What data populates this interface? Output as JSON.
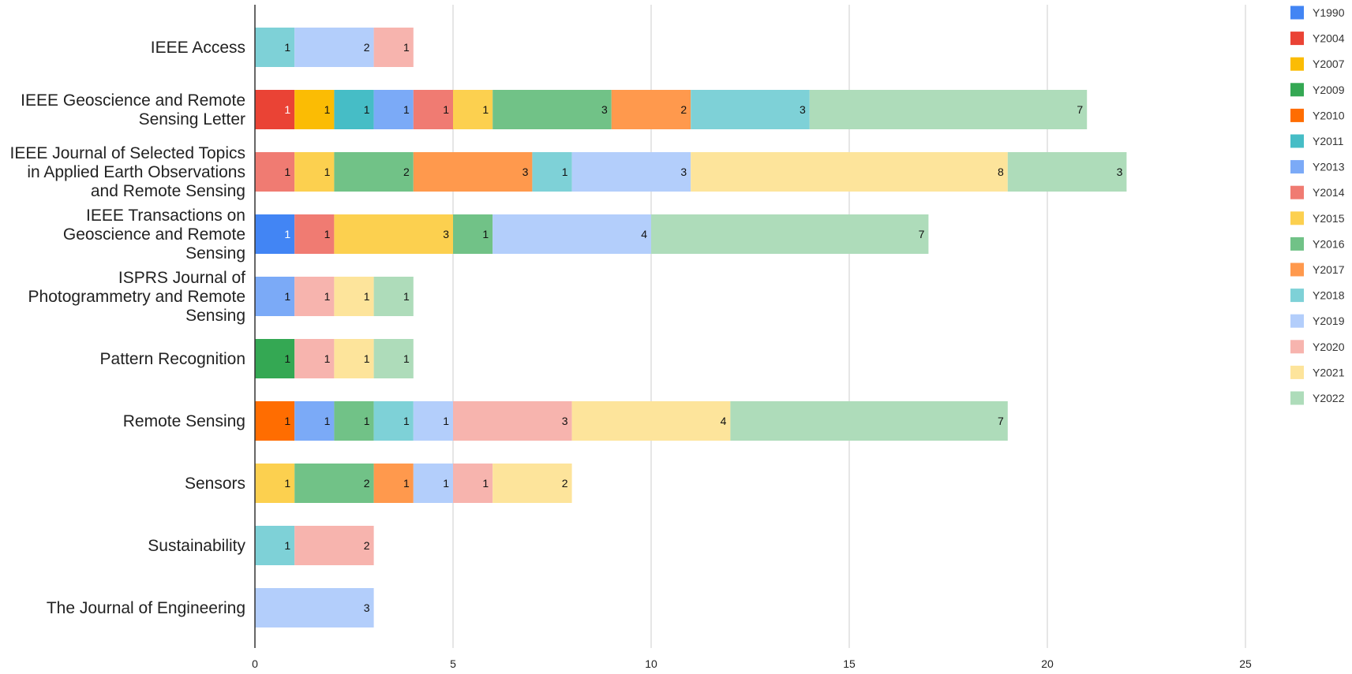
{
  "chart_data": {
    "type": "bar",
    "orientation": "horizontal",
    "stacked": true,
    "title": "",
    "xlabel": "",
    "ylabel": "",
    "xlim": [
      0,
      25
    ],
    "xticks": [
      0,
      5,
      10,
      15,
      20,
      25
    ],
    "grid": true,
    "legend_position": "right",
    "categories": [
      [
        "IEEE Access"
      ],
      [
        "IEEE Geoscience and Remote",
        "Sensing Letter"
      ],
      [
        "IEEE Journal of Selected Topics",
        "in Applied Earth Observations",
        "and Remote Sensing"
      ],
      [
        "IEEE Transactions on",
        "Geoscience and Remote",
        "Sensing"
      ],
      [
        "ISPRS Journal of",
        "Photogrammetry and Remote",
        "Sensing"
      ],
      [
        "Pattern Recognition"
      ],
      [
        "Remote Sensing"
      ],
      [
        "Sensors"
      ],
      [
        "Sustainability"
      ],
      [
        "The Journal of Engineering"
      ]
    ],
    "series": [
      {
        "name": "Y1990",
        "color": "#4285f4",
        "values": [
          0,
          0,
          0,
          1,
          0,
          0,
          0,
          0,
          0,
          0
        ]
      },
      {
        "name": "Y2004",
        "color": "#ea4335",
        "values": [
          0,
          1,
          0,
          0,
          0,
          0,
          0,
          0,
          0,
          0
        ]
      },
      {
        "name": "Y2007",
        "color": "#fbbc04",
        "values": [
          0,
          1,
          0,
          0,
          0,
          0,
          0,
          0,
          0,
          0
        ]
      },
      {
        "name": "Y2009",
        "color": "#34a853",
        "values": [
          0,
          0,
          0,
          0,
          0,
          1,
          0,
          0,
          0,
          0
        ]
      },
      {
        "name": "Y2010",
        "color": "#ff6d01",
        "values": [
          0,
          0,
          0,
          0,
          0,
          0,
          1,
          0,
          0,
          0
        ]
      },
      {
        "name": "Y2011",
        "color": "#46bdc6",
        "values": [
          0,
          1,
          0,
          0,
          0,
          0,
          0,
          0,
          0,
          0
        ]
      },
      {
        "name": "Y2013",
        "color": "#7baaf7",
        "values": [
          0,
          1,
          0,
          0,
          1,
          0,
          1,
          0,
          0,
          0
        ]
      },
      {
        "name": "Y2014",
        "color": "#f07b72",
        "values": [
          0,
          1,
          1,
          1,
          0,
          0,
          0,
          0,
          0,
          0
        ]
      },
      {
        "name": "Y2015",
        "color": "#fcd04f",
        "values": [
          0,
          1,
          1,
          3,
          0,
          0,
          0,
          1,
          0,
          0
        ]
      },
      {
        "name": "Y2016",
        "color": "#71c287",
        "values": [
          0,
          3,
          2,
          1,
          0,
          0,
          1,
          2,
          0,
          0
        ]
      },
      {
        "name": "Y2017",
        "color": "#ff994d",
        "values": [
          0,
          2,
          3,
          0,
          0,
          0,
          0,
          1,
          0,
          0
        ]
      },
      {
        "name": "Y2018",
        "color": "#7ed1d7",
        "values": [
          1,
          3,
          1,
          0,
          0,
          0,
          1,
          0,
          1,
          0
        ]
      },
      {
        "name": "Y2019",
        "color": "#b3cefb",
        "values": [
          2,
          0,
          3,
          4,
          0,
          0,
          1,
          1,
          0,
          3
        ]
      },
      {
        "name": "Y2020",
        "color": "#f7b4ae",
        "values": [
          1,
          0,
          0,
          0,
          1,
          1,
          3,
          1,
          2,
          0
        ]
      },
      {
        "name": "Y2021",
        "color": "#fde49b",
        "values": [
          0,
          0,
          8,
          0,
          1,
          1,
          4,
          2,
          0,
          0
        ]
      },
      {
        "name": "Y2022",
        "color": "#aedcba",
        "values": [
          0,
          7,
          3,
          7,
          1,
          1,
          7,
          0,
          0,
          0
        ]
      }
    ]
  }
}
